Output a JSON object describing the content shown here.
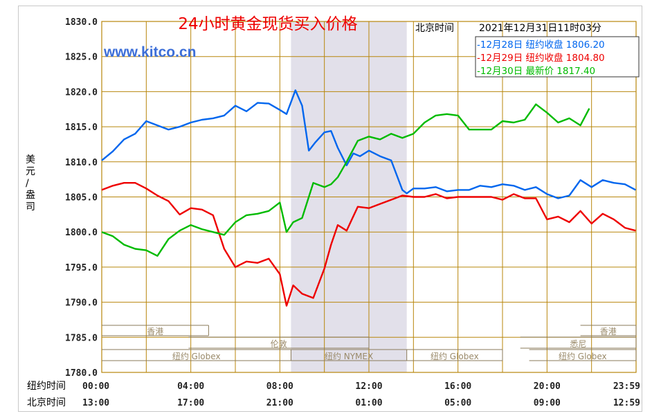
{
  "header": {
    "title": "24小时黄金现货买入价格",
    "time_prefix": "北京时间",
    "timestamp": "2021年12月31日11时03分",
    "brand": "www.kitco.cn"
  },
  "legend": [
    {
      "label": "-12月28日 纽约收盘 1806.20",
      "color": "#0066ee"
    },
    {
      "label": "-12月29日 纽约收盘 1804.80",
      "color": "#ee0000"
    },
    {
      "label": "-12月30日   最新价 1817.40",
      "color": "#00bb00"
    }
  ],
  "sessions": {
    "row1": [
      {
        "label": "香港",
        "start": 0.0,
        "end": 4.8
      },
      {
        "label": "香港",
        "start": 21.5,
        "end": 24.0
      }
    ],
    "row2": [
      {
        "label": "伦敦",
        "start": 3.9,
        "end": 12.0
      },
      {
        "label": "悉尼",
        "start": 18.8,
        "end": 24.0
      }
    ],
    "row3": [
      {
        "label": "纽约 Globex",
        "start": 0.0,
        "end": 8.5
      },
      {
        "label": "纽约 NYMEX",
        "start": 8.5,
        "end": 13.7
      },
      {
        "label": "纽约 Globex",
        "start": 13.7,
        "end": 18.0
      },
      {
        "label": "纽约 Globex",
        "start": 19.2,
        "end": 24.0
      }
    ]
  },
  "time_rows": {
    "ny_label": "纽约时间",
    "bj_label": "北京时间",
    "ny_ticks": [
      "00:00",
      "04:00",
      "08:00",
      "12:00",
      "16:00",
      "20:00",
      "23:59"
    ],
    "bj_ticks": [
      "13:00",
      "17:00",
      "21:00",
      "01:00",
      "05:00",
      "09:00",
      "12:59"
    ]
  },
  "chart_data": {
    "type": "line",
    "title": "24小时黄金现货买入价格",
    "ylabel": "美元/盎司",
    "xlabel": "纽约时间",
    "xlim": [
      0,
      24
    ],
    "ylim": [
      1780,
      1830
    ],
    "y_ticks": [
      "1780.0",
      "1785.0",
      "1790.0",
      "1795.0",
      "1800.0",
      "1805.0",
      "1810.0",
      "1815.0",
      "1820.0",
      "1825.0",
      "1830.0"
    ],
    "grid": true,
    "shaded_region": [
      8.5,
      13.7
    ],
    "series": [
      {
        "name": "12月28日",
        "color": "#0066ee",
        "x": [
          0,
          0.5,
          1,
          1.5,
          2,
          2.5,
          3,
          3.5,
          4,
          4.5,
          5,
          5.5,
          6,
          6.5,
          7,
          7.5,
          8,
          8.3,
          8.7,
          9,
          9.3,
          9.6,
          10,
          10.3,
          10.6,
          11,
          11.3,
          11.6,
          12,
          12.5,
          13,
          13.5,
          13.7,
          14,
          14.5,
          15,
          15.5,
          16,
          16.5,
          17,
          17.5,
          18,
          18.5,
          19,
          19.5,
          20,
          20.5,
          21,
          21.5,
          22,
          22.5,
          23,
          23.5,
          23.98
        ],
        "values": [
          1810.2,
          1811.5,
          1813.2,
          1814.0,
          1815.8,
          1815.2,
          1814.6,
          1815.0,
          1815.6,
          1816.0,
          1816.2,
          1816.6,
          1818.0,
          1817.2,
          1818.4,
          1818.3,
          1817.4,
          1816.8,
          1820.2,
          1818.0,
          1811.6,
          1812.8,
          1814.2,
          1814.4,
          1812.0,
          1809.5,
          1811.2,
          1810.8,
          1811.6,
          1810.8,
          1810.2,
          1806.0,
          1805.5,
          1806.2,
          1806.2,
          1806.4,
          1805.8,
          1806.0,
          1806.0,
          1806.6,
          1806.4,
          1806.8,
          1806.6,
          1806.0,
          1806.4,
          1805.4,
          1804.8,
          1805.2,
          1807.4,
          1806.4,
          1807.4,
          1807.0,
          1806.8,
          1806.0
        ]
      },
      {
        "name": "12月29日",
        "color": "#ee0000",
        "x": [
          0,
          0.5,
          1,
          1.5,
          2,
          2.5,
          3,
          3.5,
          4,
          4.5,
          5,
          5.5,
          6,
          6.5,
          7,
          7.5,
          8,
          8.3,
          8.6,
          9,
          9.5,
          10,
          10.3,
          10.6,
          11,
          11.5,
          12,
          12.5,
          13,
          13.5,
          14,
          14.5,
          15,
          15.5,
          16,
          16.5,
          17,
          17.5,
          18,
          18.5,
          19,
          19.5,
          20,
          20.5,
          21,
          21.5,
          22,
          22.5,
          23,
          23.5,
          23.98
        ],
        "values": [
          1806.0,
          1806.6,
          1807.0,
          1807.0,
          1806.2,
          1805.2,
          1804.4,
          1802.5,
          1803.4,
          1803.2,
          1802.4,
          1797.6,
          1795.0,
          1795.8,
          1795.6,
          1796.2,
          1794.0,
          1789.5,
          1792.4,
          1791.2,
          1790.6,
          1794.8,
          1798.2,
          1801.0,
          1800.2,
          1803.6,
          1803.4,
          1804.0,
          1804.6,
          1805.2,
          1805.0,
          1805.0,
          1805.4,
          1804.8,
          1805.0,
          1805.0,
          1805.0,
          1805.0,
          1804.6,
          1805.4,
          1804.8,
          1804.8,
          1801.8,
          1802.2,
          1801.4,
          1803.0,
          1801.2,
          1802.6,
          1801.8,
          1800.6,
          1800.2
        ]
      },
      {
        "name": "12月30日",
        "color": "#00bb00",
        "x": [
          0,
          0.5,
          1,
          1.5,
          2,
          2.5,
          3,
          3.5,
          4,
          4.5,
          5,
          5.5,
          6,
          6.5,
          7,
          7.5,
          8,
          8.3,
          8.6,
          9,
          9.5,
          10,
          10.3,
          10.6,
          11,
          11.5,
          12,
          12.5,
          13,
          13.5,
          14,
          14.5,
          15,
          15.5,
          16,
          16.5,
          17,
          17.5,
          18,
          18.5,
          19,
          19.5,
          20,
          20.5,
          21,
          21.5,
          21.9
        ],
        "values": [
          1800.0,
          1799.4,
          1798.2,
          1797.6,
          1797.4,
          1796.6,
          1799.0,
          1800.2,
          1801.0,
          1800.4,
          1800.0,
          1799.6,
          1801.4,
          1802.4,
          1802.6,
          1803.0,
          1804.2,
          1800.0,
          1801.4,
          1802.0,
          1807.0,
          1806.4,
          1806.8,
          1807.8,
          1810.0,
          1813.0,
          1813.6,
          1813.2,
          1814.0,
          1813.4,
          1814.0,
          1815.6,
          1816.6,
          1816.8,
          1816.6,
          1814.6,
          1814.6,
          1814.6,
          1815.8,
          1815.6,
          1816.0,
          1818.2,
          1817.0,
          1815.6,
          1816.2,
          1815.2,
          1817.6
        ]
      }
    ]
  }
}
